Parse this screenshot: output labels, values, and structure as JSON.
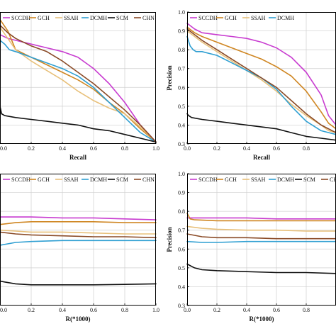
{
  "colors": {
    "SCCDH": "#c83cd0",
    "GCH": "#cf8622",
    "SSAH": "#e8c07a",
    "DCMH": "#2f9fd2",
    "SCM": "#111111",
    "CHN": "#8a4a26"
  },
  "chart_data": [
    {
      "type": "line",
      "panel": "top-left",
      "xlabel": "Recall",
      "ylabel": "",
      "xlim": [
        0,
        1
      ],
      "ylim": [
        0.3,
        1.0
      ],
      "xticks": [
        "0.0",
        "0.2",
        "0.4",
        "0.6",
        "0.8",
        "1.0"
      ],
      "yticks": [],
      "grid": true,
      "legend": {
        "placement": "top",
        "entries": [
          "SCCDH",
          "GCH",
          "SSAH",
          "DCMH",
          "SCM",
          "CHN"
        ]
      },
      "series": [
        {
          "name": "SCCDH",
          "x": [
            0,
            0.05,
            0.1,
            0.2,
            0.3,
            0.4,
            0.5,
            0.6,
            0.7,
            0.8,
            0.9,
            1.0
          ],
          "y": [
            0.88,
            0.86,
            0.85,
            0.83,
            0.81,
            0.79,
            0.76,
            0.7,
            0.62,
            0.52,
            0.4,
            0.31
          ]
        },
        {
          "name": "GCH",
          "x": [
            0,
            0.05,
            0.1,
            0.2,
            0.3,
            0.4,
            0.5,
            0.6,
            0.7,
            0.8,
            0.9,
            1.0
          ],
          "y": [
            0.96,
            0.9,
            0.8,
            0.76,
            0.72,
            0.68,
            0.64,
            0.59,
            0.52,
            0.46,
            0.38,
            0.31
          ]
        },
        {
          "name": "SSAH",
          "x": [
            0,
            0.05,
            0.1,
            0.2,
            0.3,
            0.4,
            0.5,
            0.6,
            0.7,
            0.8,
            0.9,
            1.0
          ],
          "y": [
            0.92,
            0.86,
            0.8,
            0.74,
            0.69,
            0.64,
            0.58,
            0.53,
            0.49,
            0.46,
            0.39,
            0.31
          ]
        },
        {
          "name": "DCMH",
          "x": [
            0,
            0.03,
            0.06,
            0.1,
            0.2,
            0.3,
            0.4,
            0.5,
            0.6,
            0.7,
            0.8,
            0.9,
            1.0
          ],
          "y": [
            0.85,
            0.83,
            0.8,
            0.79,
            0.76,
            0.73,
            0.7,
            0.66,
            0.6,
            0.52,
            0.44,
            0.36,
            0.31
          ]
        },
        {
          "name": "SCM",
          "x": [
            0,
            0.01,
            0.03,
            0.1,
            0.2,
            0.3,
            0.4,
            0.5,
            0.6,
            0.7,
            0.8,
            0.9,
            1.0
          ],
          "y": [
            0.5,
            0.46,
            0.45,
            0.44,
            0.43,
            0.42,
            0.41,
            0.4,
            0.38,
            0.37,
            0.35,
            0.33,
            0.31
          ]
        },
        {
          "name": "CHN",
          "x": [
            0,
            0.05,
            0.1,
            0.2,
            0.3,
            0.4,
            0.5,
            0.6,
            0.7,
            0.8,
            0.9,
            1.0
          ],
          "y": [
            0.93,
            0.89,
            0.86,
            0.82,
            0.79,
            0.74,
            0.68,
            0.62,
            0.55,
            0.48,
            0.4,
            0.31
          ]
        }
      ]
    },
    {
      "type": "line",
      "panel": "top-right",
      "xlabel": "Recall",
      "ylabel": "Precision",
      "xlim": [
        0,
        1
      ],
      "ylim": [
        0.3,
        1.0
      ],
      "xticks": [
        "0.0",
        "0.2",
        "0.4",
        "0.6",
        "0.8"
      ],
      "yticks": [
        "0.3",
        "0.4",
        "0.5",
        "0.6",
        "0.7",
        "0.8",
        "0.9",
        "1.0"
      ],
      "grid": true,
      "legend": {
        "placement": "top",
        "entries": [
          "SCCDH",
          "GCH",
          "SSAH",
          "DCMH"
        ]
      },
      "series": [
        {
          "name": "SCCDH",
          "x": [
            0,
            0.05,
            0.1,
            0.2,
            0.3,
            0.4,
            0.5,
            0.6,
            0.7,
            0.8,
            0.9,
            0.95,
            1.0
          ],
          "y": [
            0.94,
            0.91,
            0.89,
            0.88,
            0.87,
            0.86,
            0.84,
            0.81,
            0.76,
            0.68,
            0.56,
            0.45,
            0.4
          ]
        },
        {
          "name": "GCH",
          "x": [
            0,
            0.05,
            0.1,
            0.2,
            0.3,
            0.4,
            0.5,
            0.6,
            0.7,
            0.8,
            0.9,
            0.95,
            1.0
          ],
          "y": [
            0.92,
            0.89,
            0.87,
            0.84,
            0.81,
            0.78,
            0.75,
            0.71,
            0.66,
            0.58,
            0.47,
            0.41,
            0.38
          ]
        },
        {
          "name": "SSAH",
          "x": [
            0,
            0.05,
            0.1,
            0.2,
            0.3,
            0.4,
            0.5,
            0.6,
            0.7,
            0.8,
            0.9,
            0.95,
            1.0
          ],
          "y": [
            0.9,
            0.87,
            0.84,
            0.79,
            0.74,
            0.69,
            0.64,
            0.58,
            0.51,
            0.45,
            0.4,
            0.37,
            0.36
          ]
        },
        {
          "name": "DCMH",
          "x": [
            0,
            0.02,
            0.04,
            0.06,
            0.1,
            0.2,
            0.3,
            0.4,
            0.5,
            0.6,
            0.7,
            0.8,
            0.9,
            1.0
          ],
          "y": [
            0.87,
            0.82,
            0.8,
            0.79,
            0.79,
            0.77,
            0.73,
            0.69,
            0.65,
            0.59,
            0.5,
            0.42,
            0.37,
            0.35
          ]
        },
        {
          "name": "SCM",
          "x": [
            0,
            0.01,
            0.03,
            0.1,
            0.2,
            0.3,
            0.4,
            0.5,
            0.6,
            0.7,
            0.8,
            0.9,
            1.0
          ],
          "y": [
            0.46,
            0.45,
            0.44,
            0.43,
            0.42,
            0.41,
            0.4,
            0.39,
            0.38,
            0.36,
            0.34,
            0.33,
            0.32
          ]
        },
        {
          "name": "CHN",
          "x": [
            0,
            0.05,
            0.1,
            0.2,
            0.3,
            0.4,
            0.5,
            0.6,
            0.7,
            0.8,
            0.9,
            1.0
          ],
          "y": [
            0.91,
            0.88,
            0.85,
            0.8,
            0.75,
            0.7,
            0.65,
            0.6,
            0.53,
            0.46,
            0.4,
            0.36
          ]
        }
      ]
    },
    {
      "type": "line",
      "panel": "bottom-left",
      "xlabel": "R(*1000)",
      "ylabel": "",
      "xlim": [
        0,
        1
      ],
      "ylim": [
        0.3,
        1.0
      ],
      "xticks": [
        "0.0",
        "0.2",
        "0.4",
        "0.6",
        "0.8",
        "1.0"
      ],
      "yticks": [],
      "grid": true,
      "legend": {
        "placement": "top",
        "entries": [
          "SCCDH",
          "GCH",
          "SSAH",
          "DCMH",
          "SCM",
          "CHN"
        ]
      },
      "series": [
        {
          "name": "SCCDH",
          "x": [
            0,
            0.2,
            0.4,
            0.6,
            0.8,
            1.0
          ],
          "y": [
            0.77,
            0.77,
            0.765,
            0.765,
            0.76,
            0.755
          ]
        },
        {
          "name": "GCH",
          "x": [
            0,
            0.1,
            0.2,
            0.4,
            0.6,
            0.8,
            1.0
          ],
          "y": [
            0.73,
            0.74,
            0.745,
            0.745,
            0.745,
            0.74,
            0.74
          ]
        },
        {
          "name": "SSAH",
          "x": [
            0,
            0.1,
            0.2,
            0.4,
            0.6,
            0.8,
            1.0
          ],
          "y": [
            0.7,
            0.695,
            0.69,
            0.69,
            0.685,
            0.68,
            0.68
          ]
        },
        {
          "name": "DCMH",
          "x": [
            0,
            0.1,
            0.2,
            0.4,
            0.6,
            0.8,
            1.0
          ],
          "y": [
            0.62,
            0.635,
            0.64,
            0.645,
            0.645,
            0.645,
            0.645
          ]
        },
        {
          "name": "SCM",
          "x": [
            0,
            0.03,
            0.1,
            0.2,
            0.4,
            0.6,
            0.8,
            1.0
          ],
          "y": [
            0.43,
            0.425,
            0.415,
            0.41,
            0.41,
            0.41,
            0.412,
            0.415
          ]
        },
        {
          "name": "CHN",
          "x": [
            0,
            0.1,
            0.2,
            0.4,
            0.6,
            0.8,
            1.0
          ],
          "y": [
            0.69,
            0.68,
            0.675,
            0.67,
            0.665,
            0.665,
            0.66
          ]
        }
      ]
    },
    {
      "type": "line",
      "panel": "bottom-right",
      "xlabel": "R(*1000)",
      "ylabel": "Precision",
      "xlim": [
        0,
        1
      ],
      "ylim": [
        0.3,
        1.0
      ],
      "xticks": [
        "0.0",
        "0.2",
        "0.4",
        "0.6",
        "0.8"
      ],
      "yticks": [
        "0.3",
        "0.4",
        "0.5",
        "0.6",
        "0.7",
        "0.8",
        "0.9",
        "1.0"
      ],
      "grid": true,
      "legend": {
        "placement": "top",
        "entries": [
          "SCCDH",
          "GCH",
          "SSAH",
          "DCMH",
          "SCM",
          "CHN"
        ]
      },
      "series": [
        {
          "name": "SCCDH",
          "x": [
            0,
            0.2,
            0.4,
            0.6,
            0.8,
            1.0
          ],
          "y": [
            0.765,
            0.765,
            0.765,
            0.76,
            0.76,
            0.76
          ]
        },
        {
          "name": "GCH",
          "x": [
            0,
            0.02,
            0.05,
            0.2,
            0.4,
            0.6,
            0.8,
            1.0
          ],
          "y": [
            0.79,
            0.76,
            0.755,
            0.75,
            0.75,
            0.75,
            0.75,
            0.75
          ]
        },
        {
          "name": "SSAH",
          "x": [
            0,
            0.1,
            0.2,
            0.4,
            0.6,
            0.8,
            1.0
          ],
          "y": [
            0.72,
            0.71,
            0.705,
            0.7,
            0.7,
            0.695,
            0.695
          ]
        },
        {
          "name": "DCMH",
          "x": [
            0,
            0.1,
            0.2,
            0.4,
            0.6,
            0.8,
            1.0
          ],
          "y": [
            0.64,
            0.635,
            0.635,
            0.64,
            0.64,
            0.64,
            0.64
          ]
        },
        {
          "name": "SCM",
          "x": [
            0,
            0.05,
            0.1,
            0.2,
            0.4,
            0.6,
            0.8,
            1.0
          ],
          "y": [
            0.52,
            0.5,
            0.49,
            0.485,
            0.48,
            0.475,
            0.475,
            0.47
          ]
        },
        {
          "name": "CHN",
          "x": [
            0,
            0.1,
            0.2,
            0.4,
            0.6,
            0.8,
            1.0
          ],
          "y": [
            0.68,
            0.665,
            0.66,
            0.66,
            0.655,
            0.655,
            0.655
          ]
        }
      ]
    }
  ]
}
